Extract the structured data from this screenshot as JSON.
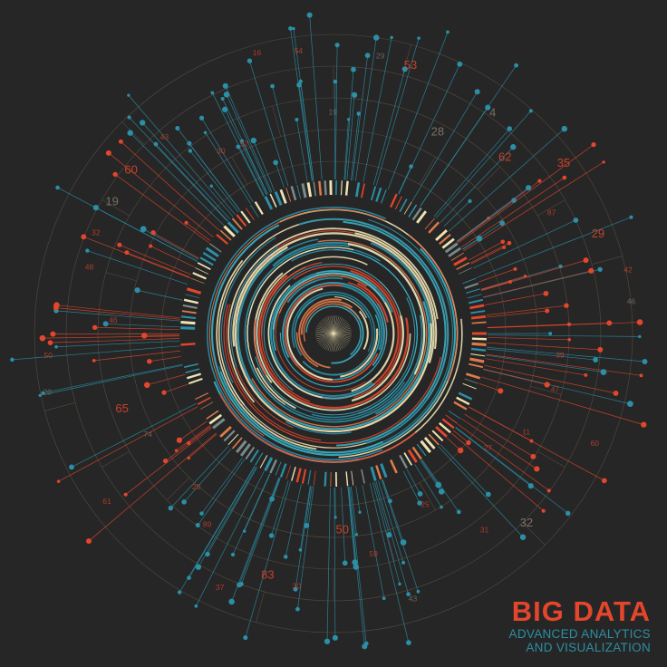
{
  "brand": {
    "title": "BIG DATA",
    "subtitle_line1": "ADVANCED ANALYTICS",
    "subtitle_line2": "AND VISUALIZATION"
  },
  "colors": {
    "background": "#262626",
    "red": "#e4462c",
    "teal": "#2b8fa6",
    "cream": "#efe3b4",
    "orange": "#e07a4a",
    "grid": "#6b5a48"
  },
  "labels": [
    {
      "text": "19",
      "color": "grey"
    },
    {
      "text": "29",
      "color": "grey"
    },
    {
      "text": "53",
      "color": "red"
    },
    {
      "text": "28",
      "color": "grey"
    },
    {
      "text": "4",
      "color": "grey"
    },
    {
      "text": "62",
      "color": "red"
    },
    {
      "text": "35",
      "color": "red"
    },
    {
      "text": "87",
      "color": "red"
    },
    {
      "text": "29",
      "color": "red"
    },
    {
      "text": "42",
      "color": "red"
    },
    {
      "text": "46",
      "color": "grey"
    },
    {
      "text": "39",
      "color": "red"
    },
    {
      "text": "47",
      "color": "red"
    },
    {
      "text": "60",
      "color": "red"
    },
    {
      "text": "11",
      "color": "red"
    },
    {
      "text": "27",
      "color": "red"
    },
    {
      "text": "32",
      "color": "grey"
    },
    {
      "text": "31",
      "color": "red"
    },
    {
      "text": "25",
      "color": "red"
    },
    {
      "text": "43",
      "color": "grey"
    },
    {
      "text": "59",
      "color": "red"
    },
    {
      "text": "50",
      "color": "red"
    },
    {
      "text": "30",
      "color": "red"
    },
    {
      "text": "83",
      "color": "red"
    },
    {
      "text": "37",
      "color": "red"
    },
    {
      "text": "89",
      "color": "red"
    },
    {
      "text": "20",
      "color": "red"
    },
    {
      "text": "61",
      "color": "red"
    },
    {
      "text": "74",
      "color": "grey"
    },
    {
      "text": "65",
      "color": "red"
    },
    {
      "text": "20",
      "color": "grey"
    },
    {
      "text": "50",
      "color": "red"
    },
    {
      "text": "46",
      "color": "red"
    },
    {
      "text": "48",
      "color": "red"
    },
    {
      "text": "32",
      "color": "red"
    },
    {
      "text": "19",
      "color": "grey"
    },
    {
      "text": "60",
      "color": "red"
    },
    {
      "text": "43",
      "color": "red"
    },
    {
      "text": "30",
      "color": "red"
    },
    {
      "text": "52",
      "color": "red"
    },
    {
      "text": "16",
      "color": "red"
    },
    {
      "text": "54",
      "color": "red"
    }
  ]
}
